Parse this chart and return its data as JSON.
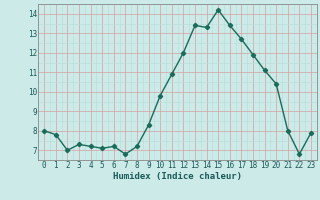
{
  "x": [
    0,
    1,
    2,
    3,
    4,
    5,
    6,
    7,
    8,
    9,
    10,
    11,
    12,
    13,
    14,
    15,
    16,
    17,
    18,
    19,
    20,
    21,
    22,
    23
  ],
  "y": [
    8.0,
    7.8,
    7.0,
    7.3,
    7.2,
    7.1,
    7.2,
    6.8,
    7.2,
    8.3,
    9.8,
    10.9,
    12.0,
    13.4,
    13.3,
    14.2,
    13.4,
    12.7,
    11.9,
    11.1,
    10.4,
    8.0,
    6.8,
    7.9
  ],
  "line_color": "#1a6b5a",
  "marker": "D",
  "marker_size": 2.2,
  "background_color": "#cceae7",
  "grid_minor_color": "#b8dbd8",
  "grid_major_color": "#d4a0a0",
  "xlabel": "Humidex (Indice chaleur)",
  "xlim": [
    -0.5,
    23.5
  ],
  "ylim": [
    6.5,
    14.5
  ],
  "yticks": [
    7,
    8,
    9,
    10,
    11,
    12,
    13,
    14
  ],
  "xticks": [
    0,
    1,
    2,
    3,
    4,
    5,
    6,
    7,
    8,
    9,
    10,
    11,
    12,
    13,
    14,
    15,
    16,
    17,
    18,
    19,
    20,
    21,
    22,
    23
  ],
  "tick_fontsize": 5.5,
  "label_fontsize": 6.5,
  "line_width": 1.0
}
